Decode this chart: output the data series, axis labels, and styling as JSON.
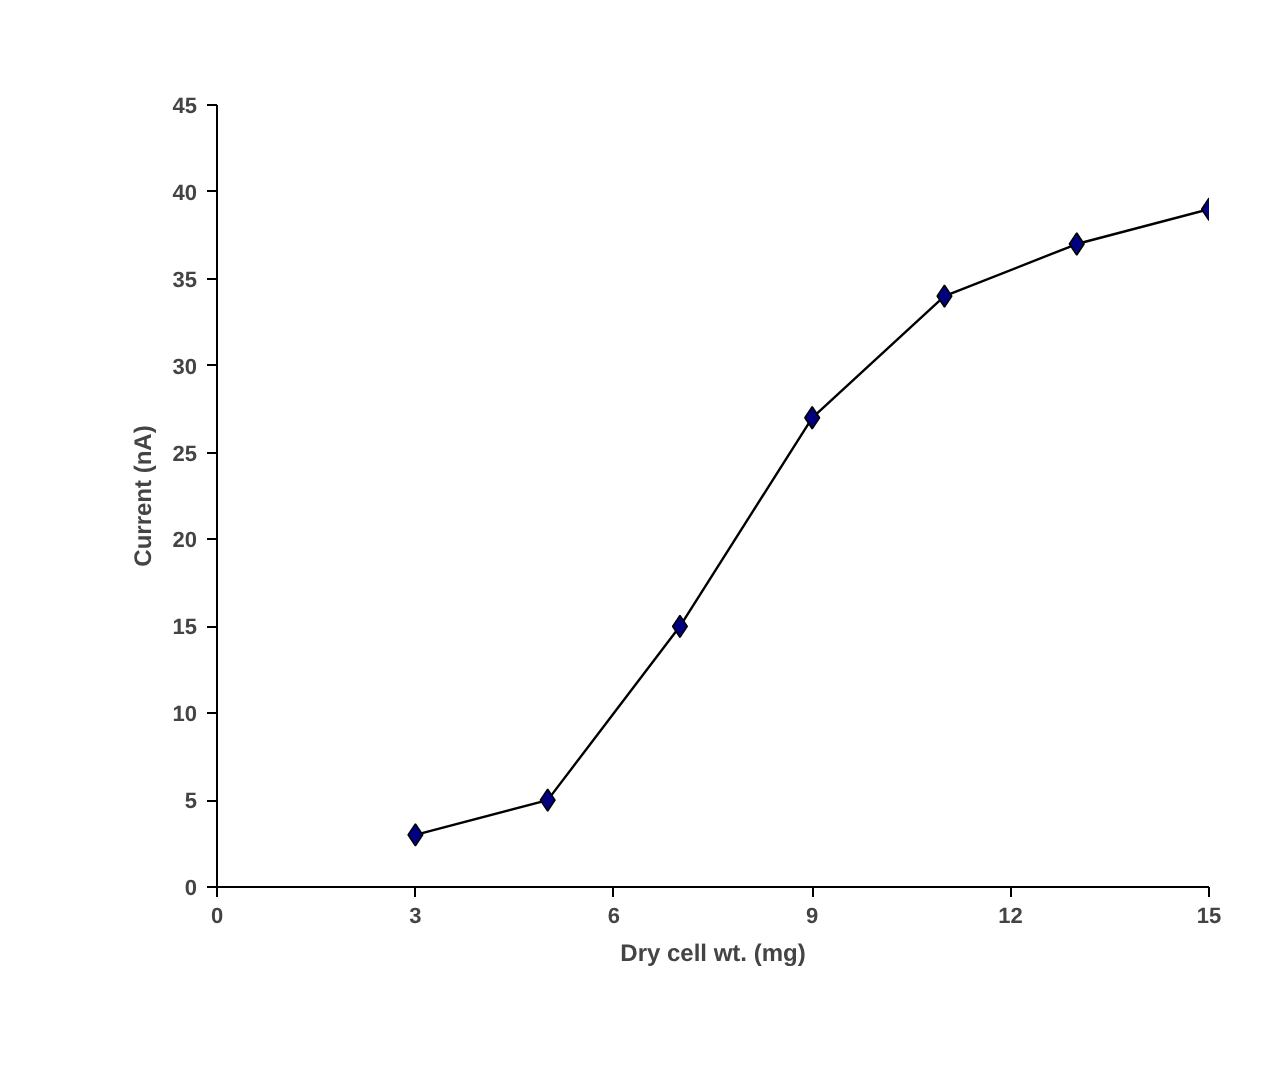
{
  "chart_data": {
    "type": "line",
    "xlabel": "Dry cell wt. (mg)",
    "ylabel": "Current (nA)",
    "x": [
      3,
      5,
      7,
      9,
      11,
      13,
      15
    ],
    "series": [
      {
        "color": "#000080",
        "values": [
          3,
          5,
          15,
          27,
          34,
          37,
          39
        ]
      }
    ],
    "xlim": [
      0,
      15
    ],
    "xticks": [
      0,
      3,
      6,
      9,
      12,
      15
    ],
    "ylim": [
      0,
      45
    ],
    "yticks": [
      0,
      5,
      10,
      15,
      20,
      25,
      30,
      35,
      40,
      45
    ],
    "marker": "diamond",
    "line_style": "solid",
    "grid": false
  }
}
